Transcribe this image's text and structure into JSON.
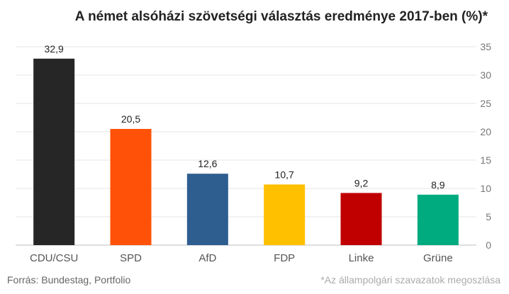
{
  "chart_data": {
    "type": "bar",
    "title": "A német alsóházi szövetségi választás eredménye 2017-ben (%)*",
    "categories": [
      "CDU/CSU",
      "SPD",
      "AfD",
      "FDP",
      "Linke",
      "Grüne"
    ],
    "values": [
      32.9,
      20.5,
      12.6,
      10.7,
      9.2,
      8.9
    ],
    "data_labels": [
      "32,9",
      "20,5",
      "12,6",
      "10,7",
      "9,2",
      "8,9"
    ],
    "bar_colors": [
      "#262626",
      "#ff5208",
      "#2e5d90",
      "#ffc000",
      "#c00000",
      "#00ab7f"
    ],
    "ylim": [
      0,
      35
    ],
    "yticks": [
      0,
      5,
      10,
      15,
      20,
      25,
      30,
      35
    ],
    "y_axis_side": "right",
    "grid": true,
    "xlabel": "",
    "ylabel": ""
  },
  "footer": {
    "source": "Forrás: Bundestag, Portfolio",
    "note": "*Az állampolgári szavazatok megoszlása"
  }
}
